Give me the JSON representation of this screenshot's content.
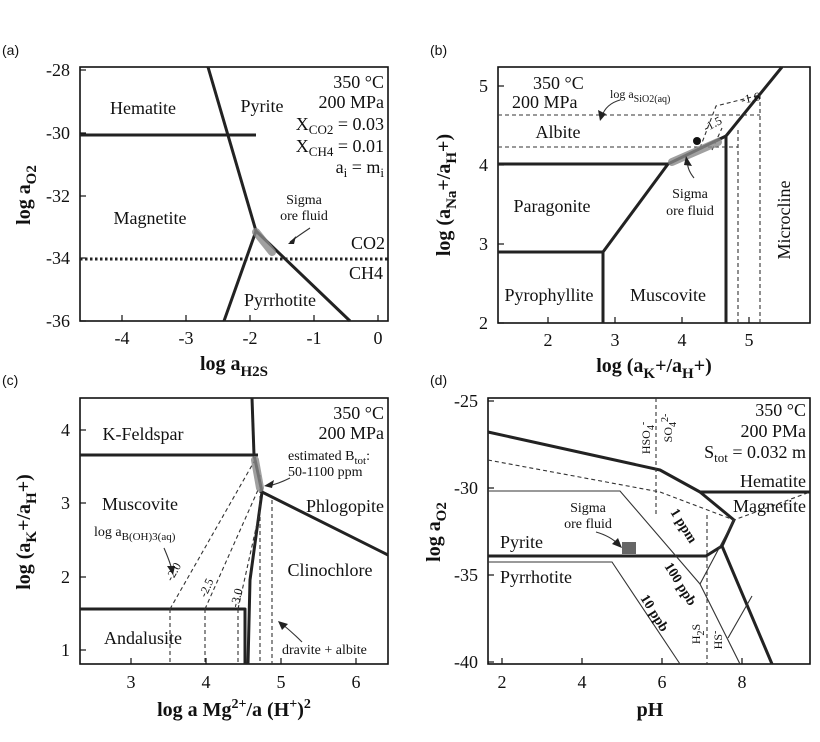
{
  "panels": {
    "a": {
      "letter": "(a)",
      "conditions": [
        "350 °C",
        "200 MPa",
        "X",
        "CO2",
        " = 0.03",
        "X",
        "CH4",
        " = 0.01",
        "a",
        "i",
        " = m",
        "i"
      ],
      "y_ticks": [
        "-28",
        "-30",
        "-32",
        "-34",
        "-36"
      ],
      "x_ticks": [
        "-4",
        "-3",
        "-2",
        "-1",
        "0"
      ],
      "ylabel": "log a",
      "ylabel_sub": "O2",
      "xlabel": "log a",
      "xlabel_sub": "H2S",
      "fields": [
        "Hematite",
        "Pyrite",
        "Magnetite",
        "Pyrrhotite"
      ],
      "gas_labels": [
        "CO2",
        "CH4"
      ],
      "fluid_label": [
        "Sigma",
        "ore fluid"
      ]
    },
    "b": {
      "letter": "(b)",
      "conditions": [
        "350 °C",
        "200 MPa"
      ],
      "y_ticks": [
        "5",
        "4",
        "3",
        "2"
      ],
      "x_ticks": [
        "2",
        "3",
        "4",
        "5"
      ],
      "ylabel": "log (a",
      "ylabel_sub1": "Na",
      "ylabel_mid": "+/a",
      "ylabel_sub2": "H",
      "ylabel_end": "+)",
      "xlabel": "log (a",
      "xlabel_sub1": "K",
      "xlabel_mid": "+/a",
      "xlabel_sub2": "H",
      "xlabel_end": "+)",
      "fields": [
        "Albite",
        "Paragonite",
        "Pyrophyllite",
        "Muscovite",
        "Microcline"
      ],
      "silica_label": "log a",
      "silica_sub": "SiO2(aq)",
      "silica_values": [
        "-1.6",
        "-1.5"
      ],
      "fluid_label": [
        "Sigma",
        "ore fluid"
      ]
    },
    "c": {
      "letter": "(c)",
      "conditions": [
        "350 °C",
        "200 MPa"
      ],
      "y_ticks": [
        "4",
        "3",
        "2",
        "1"
      ],
      "x_ticks": [
        "3",
        "4",
        "5",
        "6"
      ],
      "ylabel": "log (a",
      "ylabel_sub1": "K",
      "ylabel_mid": "+/a",
      "ylabel_sub2": "H",
      "ylabel_end": "+)",
      "xlabel": "log a Mg",
      "xlabel_sup1": "2+",
      "xlabel_mid": "/a (H",
      "xlabel_sup2": "+",
      "xlabel_end": ")",
      "xlabel_sup3": "2",
      "fields": [
        "K-Feldspar",
        "Muscovite",
        "Phlogopite",
        "Clinochlore",
        "Andalusite"
      ],
      "boron_label": "log a",
      "boron_sub": "B(OH)3(aq)",
      "boron_values": [
        "-2.0",
        "-2.5",
        "-3.0"
      ],
      "btot_label": [
        "estimated B",
        "tot",
        ":",
        "50-1100 ppm"
      ],
      "dravite_label": "dravite + albite"
    },
    "d": {
      "letter": "(d)",
      "conditions": [
        "350 °C",
        "200 PMa",
        "S",
        "tot",
        " = 0.032 m"
      ],
      "y_ticks": [
        "-25",
        "-30",
        "-35",
        "-40"
      ],
      "x_ticks": [
        "2",
        "4",
        "6",
        "8"
      ],
      "ylabel": "log a",
      "ylabel_sub": "O2",
      "xlabel": "pH",
      "fields": [
        "Hematite",
        "Magnetite",
        "Pyrite",
        "Pyrrhotite"
      ],
      "species": [
        "HSO",
        "4",
        "-",
        "SO",
        "4",
        "2-",
        "H",
        "2",
        "S",
        "HS",
        "-"
      ],
      "solubility": [
        "1 ppm",
        "100 ppb",
        "10 ppb"
      ],
      "fluid_label": [
        "Sigma",
        "ore fluid"
      ]
    }
  },
  "colors": {
    "line": "#222222",
    "fluid": "#888888",
    "fluid_box": "#666666"
  }
}
